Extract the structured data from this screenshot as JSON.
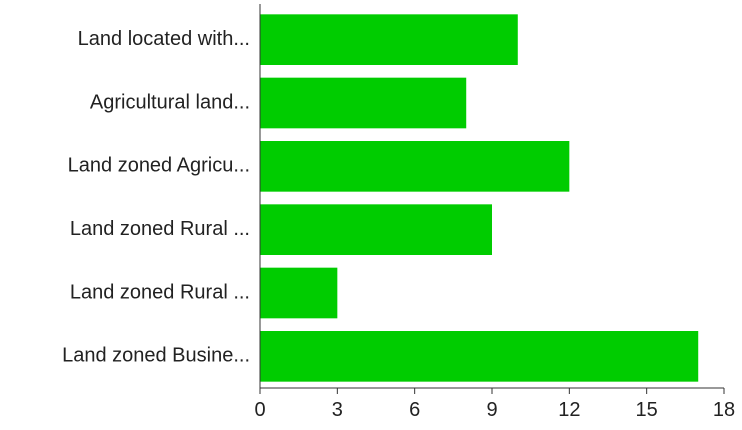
{
  "chart_data": {
    "type": "bar",
    "orientation": "horizontal",
    "categories": [
      "Land located with...",
      "Agricultural land...",
      "Land zoned Agricu...",
      "Land zoned Rural ...",
      "Land zoned Rural ...",
      "Land zoned Busine..."
    ],
    "values": [
      10,
      8,
      12,
      9,
      3,
      17
    ],
    "xlim": [
      0,
      18
    ],
    "xticks": [
      "0",
      "3",
      "6",
      "9",
      "12",
      "15",
      "18"
    ],
    "bar_color": "#00cc00",
    "grid": false,
    "legend": "none"
  }
}
